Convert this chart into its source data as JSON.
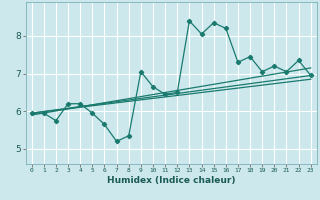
{
  "xlabel": "Humidex (Indice chaleur)",
  "background_color": "#cce8ed",
  "grid_color": "#ffffff",
  "line_color": "#1a7a6e",
  "xlim": [
    -0.5,
    23.5
  ],
  "ylim": [
    4.6,
    8.9
  ],
  "yticks": [
    5,
    6,
    7,
    8
  ],
  "xticks": [
    0,
    1,
    2,
    3,
    4,
    5,
    6,
    7,
    8,
    9,
    10,
    11,
    12,
    13,
    14,
    15,
    16,
    17,
    18,
    19,
    20,
    21,
    22,
    23
  ],
  "line1_x": [
    0,
    1,
    2,
    3,
    4,
    5,
    6,
    7,
    8,
    9,
    10,
    11,
    12,
    13,
    14,
    15,
    16,
    17,
    18,
    19,
    20,
    21,
    22,
    23
  ],
  "line1_y": [
    5.95,
    5.95,
    5.75,
    6.2,
    6.2,
    5.95,
    5.65,
    5.2,
    5.35,
    7.05,
    6.65,
    6.45,
    6.5,
    8.4,
    8.05,
    8.35,
    8.2,
    7.3,
    7.45,
    7.05,
    7.2,
    7.05,
    7.35,
    6.95
  ],
  "line2_x": [
    0,
    23
  ],
  "line2_y": [
    5.95,
    6.95
  ],
  "line3_x": [
    0,
    23
  ],
  "line3_y": [
    5.9,
    7.15
  ],
  "line4_x": [
    0,
    23
  ],
  "line4_y": [
    5.95,
    6.85
  ]
}
